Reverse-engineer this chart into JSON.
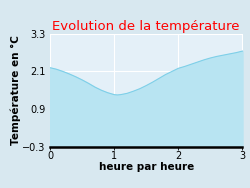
{
  "title": "Evolution de la température",
  "xlabel": "heure par heure",
  "ylabel": "Température en °C",
  "x": [
    0,
    0.1,
    0.2,
    0.3,
    0.4,
    0.5,
    0.6,
    0.7,
    0.8,
    0.9,
    1.0,
    1.05,
    1.1,
    1.2,
    1.3,
    1.4,
    1.5,
    1.6,
    1.7,
    1.8,
    1.9,
    2.0,
    2.1,
    2.2,
    2.3,
    2.4,
    2.5,
    2.6,
    2.7,
    2.8,
    2.9,
    3.0
  ],
  "y": [
    2.22,
    2.17,
    2.1,
    2.02,
    1.93,
    1.83,
    1.72,
    1.6,
    1.5,
    1.42,
    1.36,
    1.35,
    1.36,
    1.4,
    1.47,
    1.55,
    1.65,
    1.76,
    1.88,
    2.0,
    2.1,
    2.2,
    2.26,
    2.33,
    2.4,
    2.47,
    2.53,
    2.58,
    2.62,
    2.66,
    2.7,
    2.75
  ],
  "fill_color": "#b8e4f2",
  "line_color": "#7ecfe8",
  "fill_baseline": -0.3,
  "title_color": "#ff0000",
  "bg_color": "#d8e8f0",
  "plot_bg_color": "#e4f0f8",
  "grid_color": "#ffffff",
  "yticks": [
    -0.3,
    0.9,
    2.1,
    3.3
  ],
  "xticks": [
    0,
    1,
    2,
    3
  ],
  "ylim": [
    -0.3,
    3.3
  ],
  "xlim": [
    0,
    3
  ],
  "title_fontsize": 9.5,
  "label_fontsize": 7.5,
  "tick_fontsize": 7
}
